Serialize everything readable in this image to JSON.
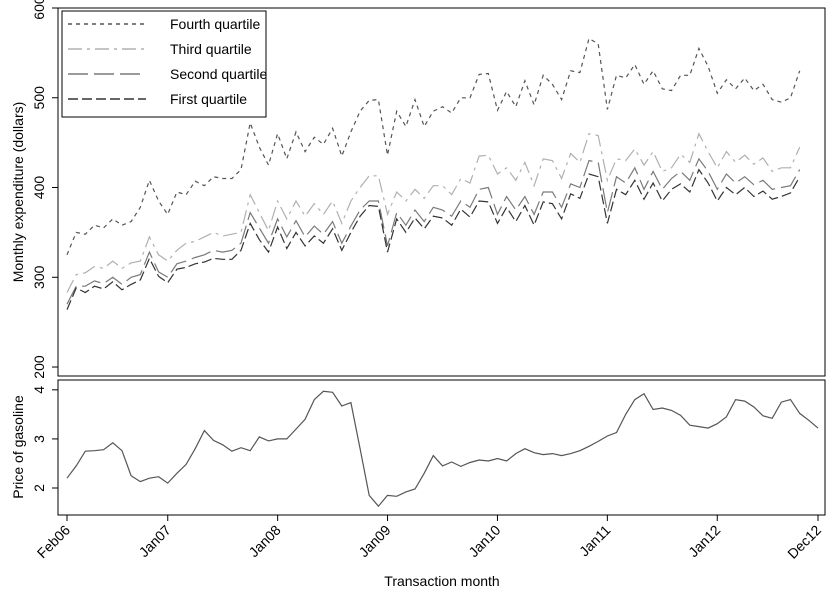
{
  "chart_data": [
    {
      "type": "line",
      "ylabel": "Monthly expenditure (dollars)",
      "ylim": [
        190,
        600
      ],
      "yticks": [
        200,
        300,
        400,
        500,
        600
      ],
      "grid": false,
      "legend_position": "top-left",
      "series": [
        {
          "name": "Fourth quartile",
          "color": "#555555",
          "dash": "4,4",
          "values": [
            325,
            350,
            348,
            358,
            355,
            365,
            358,
            362,
            378,
            408,
            385,
            370,
            395,
            392,
            407,
            402,
            412,
            410,
            410,
            420,
            472,
            445,
            425,
            460,
            432,
            462,
            440,
            456,
            448,
            466,
            435,
            462,
            485,
            497,
            498,
            436,
            485,
            468,
            498,
            468,
            485,
            490,
            483,
            500,
            500,
            526,
            527,
            486,
            507,
            490,
            519,
            492,
            525,
            515,
            498,
            530,
            528,
            566,
            560,
            487,
            525,
            522,
            537,
            515,
            530,
            510,
            508,
            525,
            525,
            555,
            535,
            505,
            520,
            510,
            522,
            508,
            515,
            498,
            495,
            500,
            530
          ]
        },
        {
          "name": "Third quartile",
          "color": "#b0b0b0",
          "dash": "14,5,3,5",
          "values": [
            283,
            303,
            305,
            312,
            310,
            318,
            310,
            316,
            318,
            345,
            325,
            318,
            330,
            338,
            340,
            345,
            350,
            346,
            348,
            350,
            392,
            372,
            352,
            385,
            365,
            385,
            368,
            382,
            370,
            385,
            360,
            385,
            400,
            413,
            413,
            370,
            395,
            385,
            398,
            388,
            402,
            402,
            392,
            410,
            405,
            435,
            436,
            415,
            422,
            408,
            428,
            402,
            432,
            430,
            410,
            438,
            428,
            460,
            458,
            408,
            432,
            430,
            443,
            425,
            440,
            418,
            422,
            437,
            428,
            460,
            440,
            422,
            440,
            428,
            436,
            426,
            433,
            418,
            422,
            422,
            445
          ]
        },
        {
          "name": "Second quartile",
          "color": "#7a7a7a",
          "dash": "20,6",
          "values": [
            270,
            290,
            290,
            296,
            293,
            300,
            292,
            300,
            303,
            328,
            306,
            300,
            315,
            318,
            322,
            325,
            330,
            328,
            330,
            338,
            372,
            355,
            338,
            365,
            345,
            363,
            345,
            357,
            348,
            362,
            338,
            357,
            375,
            385,
            385,
            335,
            372,
            358,
            375,
            362,
            378,
            375,
            368,
            385,
            378,
            398,
            400,
            370,
            390,
            375,
            390,
            370,
            395,
            395,
            378,
            404,
            400,
            430,
            428,
            372,
            412,
            405,
            422,
            398,
            418,
            398,
            410,
            418,
            408,
            432,
            418,
            398,
            415,
            405,
            412,
            403,
            408,
            398,
            400,
            402,
            420
          ]
        },
        {
          "name": "First quartile",
          "color": "#333333",
          "dash": "10,4",
          "values": [
            264,
            288,
            283,
            290,
            287,
            295,
            286,
            292,
            297,
            321,
            301,
            294,
            309,
            311,
            315,
            317,
            321,
            320,
            320,
            330,
            360,
            342,
            328,
            356,
            332,
            350,
            335,
            346,
            338,
            354,
            330,
            350,
            368,
            380,
            379,
            328,
            365,
            350,
            366,
            354,
            368,
            366,
            358,
            376,
            367,
            385,
            384,
            360,
            378,
            362,
            380,
            358,
            384,
            382,
            365,
            393,
            388,
            415,
            412,
            360,
            398,
            392,
            408,
            387,
            405,
            385,
            398,
            404,
            395,
            420,
            405,
            385,
            400,
            392,
            400,
            390,
            396,
            387,
            390,
            394,
            412
          ]
        }
      ],
      "legend": [
        "Fourth quartile",
        "Third quartile",
        "Second quartile",
        "First quartile"
      ]
    },
    {
      "type": "line",
      "ylabel": "Price of gasoline",
      "xlabel": "Transaction month",
      "ylim": [
        1.45,
        4.2
      ],
      "yticks": [
        2,
        3,
        4
      ],
      "grid": false,
      "x_tick_labels": [
        "Feb06",
        "Jan07",
        "Jan08",
        "Jan09",
        "Jan10",
        "Jan11",
        "Jan12",
        "Dec12"
      ],
      "x_tick_month_index": [
        0,
        11,
        23,
        35,
        47,
        59,
        71,
        82
      ],
      "series": [
        {
          "color": "#555555",
          "values": [
            2.2,
            2.45,
            2.75,
            2.76,
            2.78,
            2.92,
            2.76,
            2.25,
            2.13,
            2.2,
            2.23,
            2.1,
            2.3,
            2.48,
            2.8,
            3.17,
            2.97,
            2.88,
            2.75,
            2.82,
            2.76,
            3.04,
            2.96,
            3.0,
            3.0,
            3.2,
            3.4,
            3.8,
            3.97,
            3.95,
            3.67,
            3.74,
            2.8,
            1.85,
            1.63,
            1.85,
            1.83,
            1.92,
            1.98,
            2.3,
            2.66,
            2.45,
            2.53,
            2.44,
            2.52,
            2.57,
            2.55,
            2.6,
            2.55,
            2.7,
            2.8,
            2.72,
            2.68,
            2.7,
            2.66,
            2.7,
            2.76,
            2.85,
            2.95,
            3.06,
            3.13,
            3.5,
            3.8,
            3.92,
            3.6,
            3.63,
            3.58,
            3.48,
            3.28,
            3.25,
            3.22,
            3.31,
            3.45,
            3.8,
            3.77,
            3.65,
            3.47,
            3.42,
            3.75,
            3.8,
            3.52,
            3.38,
            3.22
          ]
        }
      ]
    }
  ]
}
